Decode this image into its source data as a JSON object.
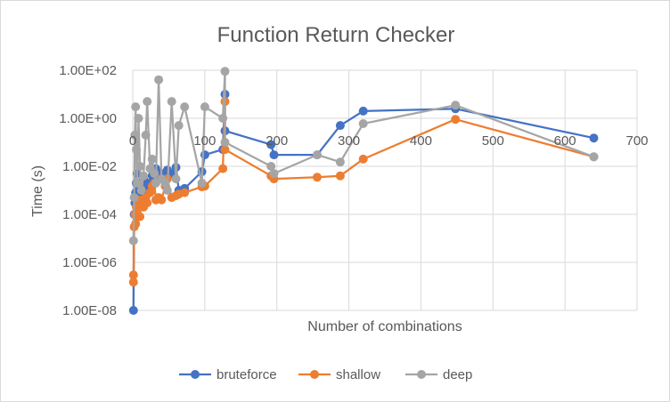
{
  "chart_data": {
    "type": "scatter",
    "title": "Function Return Checker",
    "xlabel": "Number of combinations",
    "ylabel": "Time (s)",
    "xlim": [
      0,
      700
    ],
    "ylim": [
      1e-08,
      100
    ],
    "yscale": "log",
    "x_ticks": [
      "0",
      "100",
      "200",
      "300",
      "400",
      "500",
      "600",
      "700"
    ],
    "y_ticks": [
      "1.00E-08",
      "1.00E-06",
      "1.00E-04",
      "1.00E-02",
      "1.00E+00",
      "1.00E+02"
    ],
    "grid": true,
    "legend_position": "bottom",
    "series": [
      {
        "name": "bruteforce",
        "color": "#4472C4",
        "points": [
          [
            1,
            1e-08
          ],
          [
            2,
            0.0001
          ],
          [
            3,
            0.0003
          ],
          [
            4,
            0.0008
          ],
          [
            5,
            0.002
          ],
          [
            6,
            0.005
          ],
          [
            8,
            0.0005
          ],
          [
            10,
            0.002
          ],
          [
            12,
            0.0008
          ],
          [
            15,
            0.003
          ],
          [
            18,
            0.001
          ],
          [
            20,
            0.002
          ],
          [
            24,
            0.0015
          ],
          [
            27,
            0.004
          ],
          [
            30,
            0.002
          ],
          [
            32,
            0.008
          ],
          [
            36,
            0.003
          ],
          [
            40,
            0.005
          ],
          [
            45,
            0.004
          ],
          [
            48,
            0.007
          ],
          [
            54,
            0.005
          ],
          [
            60,
            0.009
          ],
          [
            64,
            0.001
          ],
          [
            72,
            0.0012
          ],
          [
            96,
            0.006
          ],
          [
            100,
            0.03
          ],
          [
            125,
            0.05
          ],
          [
            128,
            10
          ],
          [
            128,
            0.3
          ],
          [
            192,
            0.08
          ],
          [
            196,
            0.03
          ],
          [
            256,
            0.03
          ],
          [
            288,
            0.5
          ],
          [
            320,
            2
          ],
          [
            448,
            2.5
          ],
          [
            640,
            0.15
          ]
        ]
      },
      {
        "name": "shallow",
        "color": "#ED7D31",
        "points": [
          [
            1,
            3e-07
          ],
          [
            1,
            1.5e-07
          ],
          [
            2,
            3e-05
          ],
          [
            3,
            0.0001
          ],
          [
            4,
            4e-05
          ],
          [
            5,
            0.0002
          ],
          [
            6,
            0.0004
          ],
          [
            8,
            0.0003
          ],
          [
            10,
            8e-05
          ],
          [
            12,
            0.0004
          ],
          [
            15,
            0.0002
          ],
          [
            18,
            0.0005
          ],
          [
            20,
            0.0003
          ],
          [
            24,
            0.0008
          ],
          [
            27,
            0.0015
          ],
          [
            30,
            0.002
          ],
          [
            32,
            0.0004
          ],
          [
            36,
            0.0005
          ],
          [
            40,
            0.0004
          ],
          [
            45,
            0.0015
          ],
          [
            48,
            0.003
          ],
          [
            54,
            0.0005
          ],
          [
            60,
            0.0006
          ],
          [
            64,
            0.0007
          ],
          [
            72,
            0.0008
          ],
          [
            96,
            0.0014
          ],
          [
            100,
            0.0015
          ],
          [
            125,
            0.008
          ],
          [
            128,
            5
          ],
          [
            128,
            0.05
          ],
          [
            192,
            0.004
          ],
          [
            196,
            0.003
          ],
          [
            256,
            0.0035
          ],
          [
            288,
            0.004
          ],
          [
            320,
            0.02
          ],
          [
            448,
            0.9
          ],
          [
            640,
            0.025
          ]
        ]
      },
      {
        "name": "deep",
        "color": "#A5A5A5",
        "points": [
          [
            1,
            8e-06
          ],
          [
            2,
            0.0005
          ],
          [
            3,
            0.2
          ],
          [
            4,
            3
          ],
          [
            5,
            0.05
          ],
          [
            6,
            0.002
          ],
          [
            8,
            1
          ],
          [
            10,
            0.01
          ],
          [
            12,
            0.001
          ],
          [
            15,
            0.004
          ],
          [
            18,
            0.2
          ],
          [
            20,
            5
          ],
          [
            24,
            0.008
          ],
          [
            27,
            0.02
          ],
          [
            30,
            0.005
          ],
          [
            32,
            0.002
          ],
          [
            36,
            40
          ],
          [
            40,
            0.003
          ],
          [
            45,
            0.002
          ],
          [
            48,
            0.001
          ],
          [
            54,
            5
          ],
          [
            60,
            0.003
          ],
          [
            64,
            0.5
          ],
          [
            72,
            3
          ],
          [
            96,
            0.002
          ],
          [
            100,
            3
          ],
          [
            125,
            1
          ],
          [
            128,
            90
          ],
          [
            128,
            0.1
          ],
          [
            192,
            0.01
          ],
          [
            196,
            0.005
          ],
          [
            256,
            0.03
          ],
          [
            288,
            0.015
          ],
          [
            320,
            0.6
          ],
          [
            448,
            3.5
          ],
          [
            640,
            0.025
          ]
        ]
      }
    ]
  }
}
